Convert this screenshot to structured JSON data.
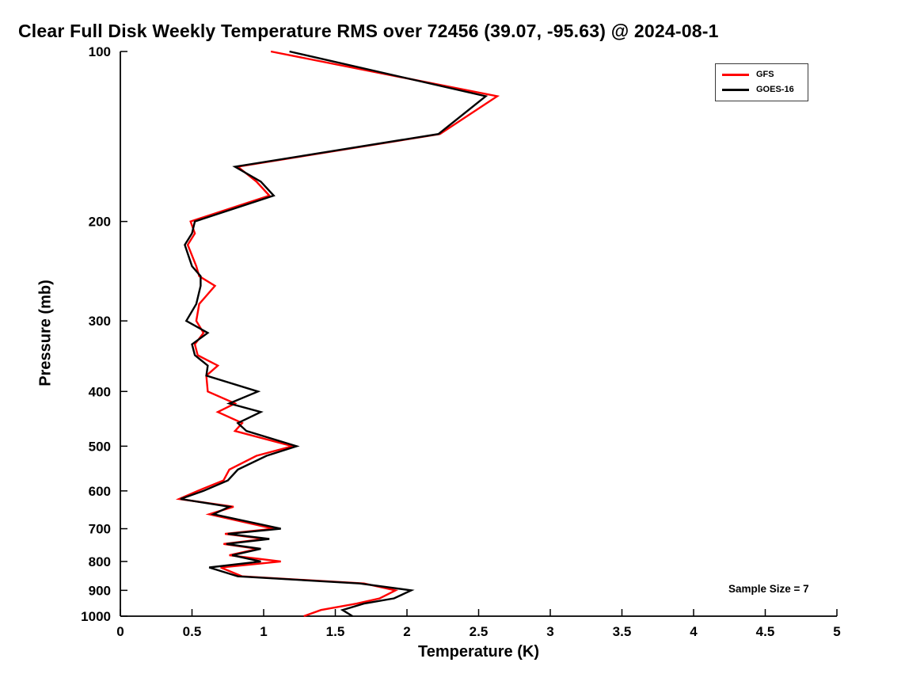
{
  "chart_data": {
    "type": "line",
    "title": "Clear Full Disk Weekly Temperature RMS over 72456 (39.07, -95.63) @ 2024-08-1",
    "xlabel": "Temperature (K)",
    "ylabel": "Pressure (mb)",
    "annotation": "Sample Size = 7",
    "xlim": [
      0,
      5
    ],
    "ylim": [
      100,
      1000
    ],
    "yscale": "log",
    "y_inverted": true,
    "grid": false,
    "legend_position": "top-right",
    "xticks": [
      0,
      0.5,
      1,
      1.5,
      2,
      2.5,
      3,
      3.5,
      4,
      4.5,
      5
    ],
    "yticks": [
      100,
      200,
      300,
      400,
      500,
      600,
      700,
      800,
      900,
      1000
    ],
    "pressure_mb": [
      100,
      120,
      140,
      160,
      170,
      180,
      200,
      210,
      220,
      240,
      250,
      260,
      280,
      300,
      315,
      330,
      345,
      360,
      375,
      400,
      420,
      435,
      455,
      470,
      500,
      520,
      550,
      575,
      600,
      620,
      640,
      660,
      700,
      715,
      730,
      745,
      760,
      780,
      800,
      820,
      850,
      875,
      900,
      930,
      950,
      975,
      1000
    ],
    "series": [
      {
        "name": "GFS",
        "color": "#ff0000",
        "values": [
          1.05,
          2.63,
          2.23,
          0.82,
          0.95,
          1.04,
          0.49,
          0.52,
          0.47,
          0.53,
          0.55,
          0.66,
          0.55,
          0.53,
          0.58,
          0.52,
          0.54,
          0.68,
          0.6,
          0.61,
          0.8,
          0.68,
          0.85,
          0.8,
          1.2,
          0.95,
          0.76,
          0.72,
          0.54,
          0.41,
          0.79,
          0.62,
          1.07,
          0.73,
          1.01,
          0.72,
          0.96,
          0.76,
          1.12,
          0.7,
          0.85,
          1.7,
          1.92,
          1.81,
          1.65,
          1.4,
          1.28
        ]
      },
      {
        "name": "GOES-16",
        "color": "#000000",
        "values": [
          1.18,
          2.55,
          2.22,
          0.8,
          0.98,
          1.07,
          0.52,
          0.5,
          0.45,
          0.5,
          0.56,
          0.56,
          0.53,
          0.46,
          0.61,
          0.5,
          0.52,
          0.61,
          0.6,
          0.96,
          0.76,
          0.98,
          0.82,
          0.88,
          1.23,
          1.02,
          0.82,
          0.75,
          0.58,
          0.42,
          0.76,
          0.65,
          1.12,
          0.75,
          1.04,
          0.74,
          0.98,
          0.78,
          0.98,
          0.62,
          0.82,
          1.67,
          2.03,
          1.91,
          1.7,
          1.55,
          1.62
        ]
      }
    ]
  }
}
